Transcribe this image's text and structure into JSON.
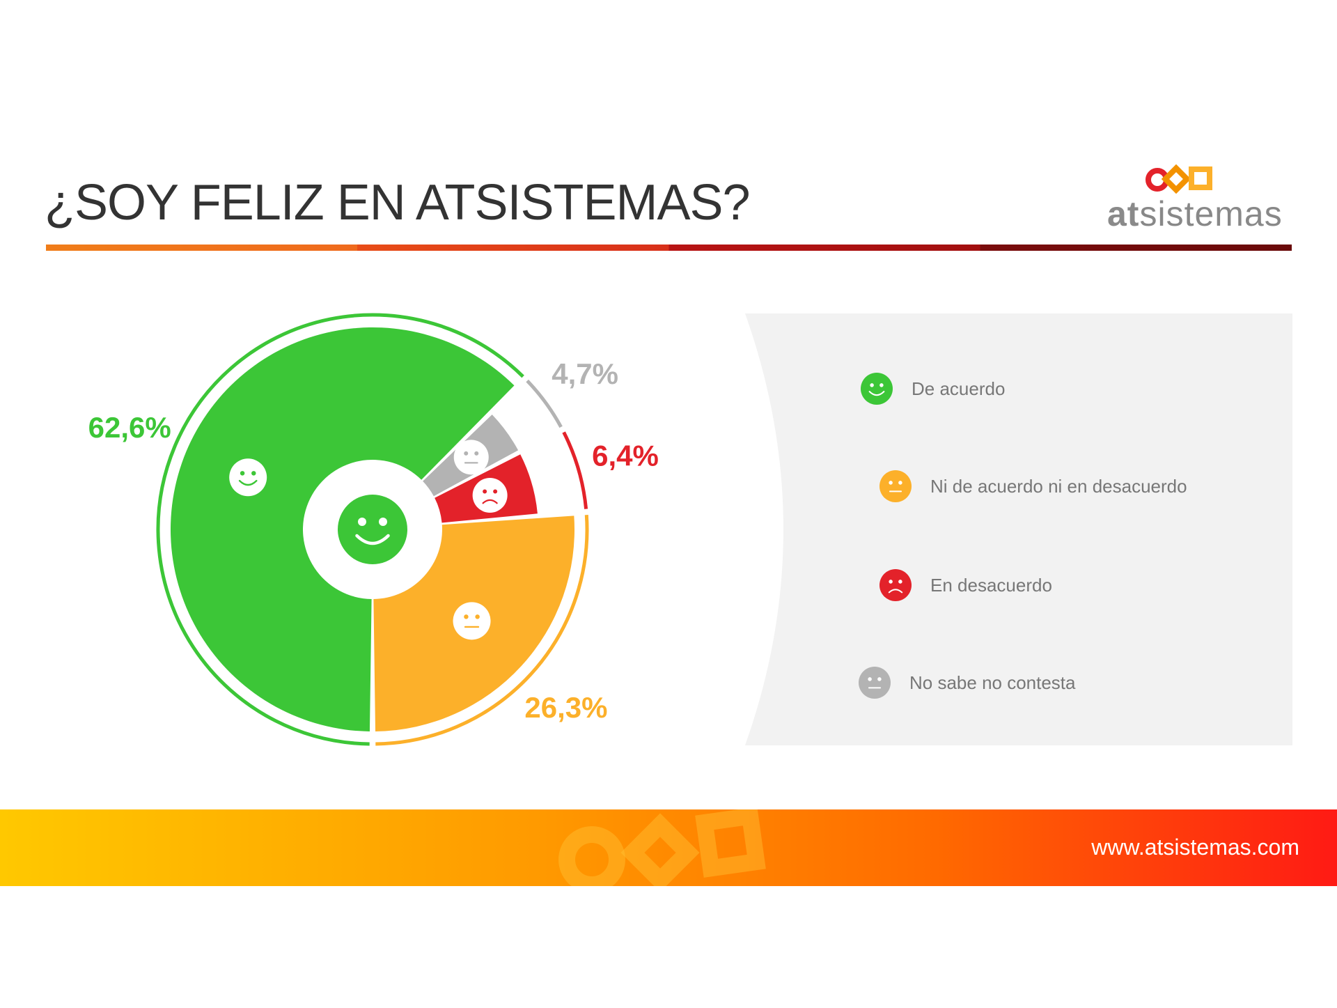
{
  "header": {
    "title": "¿SOY FELIZ EN ATSISTEMAS?",
    "logo_prefix": "at",
    "logo_suffix": "sistemas"
  },
  "footer": {
    "url": "www.atsistemas.com"
  },
  "colors": {
    "green": "#3cc637",
    "orange": "#fcb02a",
    "red": "#e3222a",
    "grey": "#b3b3b3",
    "panel": "#f2f2f2"
  },
  "chart_data": {
    "type": "pie",
    "title": "¿SOY FELIZ EN ATSISTEMAS?",
    "unit": "%",
    "slices": [
      {
        "label": "De acuerdo",
        "value": 62.6,
        "value_label": "62,6%",
        "color": "#3cc637",
        "icon": "happy-face-icon"
      },
      {
        "label": "Ni de acuerdo ni en desacuerdo",
        "value": 26.3,
        "value_label": "26,3%",
        "color": "#fcb02a",
        "icon": "neutral-face-icon"
      },
      {
        "label": "En desacuerdo",
        "value": 6.4,
        "value_label": "6,4%",
        "color": "#e3222a",
        "icon": "sad-face-icon"
      },
      {
        "label": "No sabe no contesta",
        "value": 4.7,
        "value_label": "4,7%",
        "color": "#b3b3b3",
        "icon": "neutral-face-icon"
      }
    ],
    "legend_position": "right"
  }
}
